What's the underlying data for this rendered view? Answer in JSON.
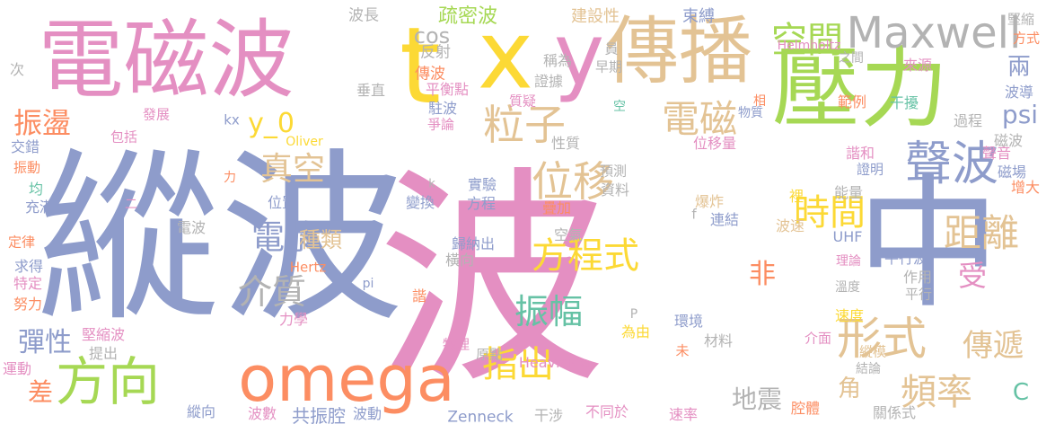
{
  "word_cloud": {
    "colors": {
      "pink": "#e48fc2",
      "periwinkle": "#8e9ccb",
      "yellow": "#fcd935",
      "tan": "#e3c394",
      "green": "#a6d854",
      "orange": "#fc8d62",
      "teal": "#66c2a5",
      "gray": "#b3b3b3"
    },
    "words": [
      {
        "text": "縱波",
        "color": "periwinkle"
      },
      {
        "text": "波",
        "color": "pink"
      },
      {
        "text": "中",
        "color": "periwinkle"
      },
      {
        "text": "電磁波",
        "color": "pink"
      },
      {
        "text": "t",
        "color": "yellow"
      },
      {
        "text": "x",
        "color": "yellow"
      },
      {
        "text": "y",
        "color": "pink"
      },
      {
        "text": "傳播",
        "color": "tan"
      },
      {
        "text": "壓力",
        "color": "green"
      },
      {
        "text": "omega",
        "color": "orange"
      },
      {
        "text": "方向",
        "color": "green"
      },
      {
        "text": "Maxwell",
        "color": "gray"
      },
      {
        "text": "聲波",
        "color": "periwinkle"
      },
      {
        "text": "粒子",
        "color": "tan"
      },
      {
        "text": "電磁",
        "color": "tan"
      },
      {
        "text": "空間",
        "color": "green"
      },
      {
        "text": "位移",
        "color": "tan"
      },
      {
        "text": "方程式",
        "color": "yellow"
      },
      {
        "text": "形式",
        "color": "tan"
      },
      {
        "text": "距離",
        "color": "tan"
      },
      {
        "text": "時間",
        "color": "yellow"
      },
      {
        "text": "振幅",
        "color": "teal"
      },
      {
        "text": "指出",
        "color": "yellow"
      },
      {
        "text": "頻率",
        "color": "tan"
      },
      {
        "text": "傳遞",
        "color": "tan"
      },
      {
        "text": "電漿",
        "color": "periwinkle"
      },
      {
        "text": "介質",
        "color": "gray"
      },
      {
        "text": "真空",
        "color": "tan"
      },
      {
        "text": "振盪",
        "color": "orange"
      },
      {
        "text": "psi",
        "color": "periwinkle"
      },
      {
        "text": "兩",
        "color": "periwinkle"
      },
      {
        "text": "彈性",
        "color": "periwinkle"
      },
      {
        "text": "差",
        "color": "orange"
      },
      {
        "text": "非",
        "color": "orange"
      },
      {
        "text": "受",
        "color": "pink"
      },
      {
        "text": "地震",
        "color": "gray"
      },
      {
        "text": "角",
        "color": "tan"
      },
      {
        "text": "C",
        "color": "teal"
      },
      {
        "text": "y_0",
        "color": "yellow"
      },
      {
        "text": "cos",
        "color": "gray"
      },
      {
        "text": "疏密波",
        "color": "green"
      },
      {
        "text": "種類",
        "color": "tan"
      },
      {
        "text": "共振腔",
        "color": "periwinkle"
      },
      {
        "text": "建設性",
        "color": "tan"
      },
      {
        "text": "束縛",
        "color": "periwinkle"
      },
      {
        "text": "波長",
        "color": "gray"
      },
      {
        "text": "反射",
        "color": "gray"
      },
      {
        "text": "傳波",
        "color": "orange"
      },
      {
        "text": "稱為",
        "color": "gray"
      },
      {
        "text": "證據",
        "color": "gray"
      },
      {
        "text": "員",
        "color": "gray"
      },
      {
        "text": "早期",
        "color": "gray"
      },
      {
        "text": "Helmholtz",
        "color": "pink"
      },
      {
        "text": "之間",
        "color": "gray"
      },
      {
        "text": "來源",
        "color": "pink"
      },
      {
        "text": "堅縮",
        "color": "gray"
      },
      {
        "text": "方式",
        "color": "orange"
      },
      {
        "text": "次",
        "color": "gray"
      },
      {
        "text": "垂直",
        "color": "gray"
      },
      {
        "text": "平衡點",
        "color": "pink"
      },
      {
        "text": "質疑",
        "color": "pink"
      },
      {
        "text": "駐波",
        "color": "periwinkle"
      },
      {
        "text": "爭論",
        "color": "pink"
      },
      {
        "text": "空",
        "color": "teal"
      },
      {
        "text": "相",
        "color": "orange"
      },
      {
        "text": "物質",
        "color": "periwinkle"
      },
      {
        "text": "範例",
        "color": "orange"
      },
      {
        "text": "干擾",
        "color": "teal"
      },
      {
        "text": "過程",
        "color": "gray"
      },
      {
        "text": "波導",
        "color": "periwinkle"
      },
      {
        "text": "發展",
        "color": "pink"
      },
      {
        "text": "kx",
        "color": "periwinkle"
      },
      {
        "text": "包括",
        "color": "pink"
      },
      {
        "text": "Oliver",
        "color": "yellow"
      },
      {
        "text": "性質",
        "color": "gray"
      },
      {
        "text": "位移量",
        "color": "pink"
      },
      {
        "text": "交錯",
        "color": "periwinkle"
      },
      {
        "text": "振動",
        "color": "orange"
      },
      {
        "text": "預測",
        "color": "gray"
      },
      {
        "text": "資料",
        "color": "gray"
      },
      {
        "text": "諧和",
        "color": "pink"
      },
      {
        "text": "證明",
        "color": "periwinkle"
      },
      {
        "text": "聲音",
        "color": "pink"
      },
      {
        "text": "磁波",
        "color": "gray"
      },
      {
        "text": "磁場",
        "color": "periwinkle"
      },
      {
        "text": "增大",
        "color": "orange"
      },
      {
        "text": "力",
        "color": "orange"
      },
      {
        "text": "均",
        "color": "teal"
      },
      {
        "text": "充滿",
        "color": "periwinkle"
      },
      {
        "text": "二",
        "color": "pink"
      },
      {
        "text": "k",
        "color": "gray"
      },
      {
        "text": "實驗",
        "color": "periwinkle"
      },
      {
        "text": "爆炸",
        "color": "tan"
      },
      {
        "text": "f",
        "color": "gray"
      },
      {
        "text": "連結",
        "color": "periwinkle"
      },
      {
        "text": "裡",
        "color": "yellow"
      },
      {
        "text": "能量",
        "color": "gray"
      },
      {
        "text": "位置",
        "color": "periwinkle"
      },
      {
        "text": "變換",
        "color": "periwinkle"
      },
      {
        "text": "方程",
        "color": "periwinkle"
      },
      {
        "text": "疊加",
        "color": "orange"
      },
      {
        "text": "定律",
        "color": "orange"
      },
      {
        "text": "電波",
        "color": "gray"
      },
      {
        "text": "波速",
        "color": "tan"
      },
      {
        "text": "UHF",
        "color": "periwinkle"
      },
      {
        "text": "求得",
        "color": "periwinkle"
      },
      {
        "text": "Hertz",
        "color": "orange"
      },
      {
        "text": "歸納出",
        "color": "periwinkle"
      },
      {
        "text": "空氣",
        "color": "gray"
      },
      {
        "text": "理論",
        "color": "pink"
      },
      {
        "text": "特定",
        "color": "pink"
      },
      {
        "text": "橫向",
        "color": "gray"
      },
      {
        "text": "平行波",
        "color": "periwinkle"
      },
      {
        "text": "作用",
        "color": "gray"
      },
      {
        "text": "平行",
        "color": "gray"
      },
      {
        "text": "溫度",
        "color": "gray"
      },
      {
        "text": "pi",
        "color": "periwinkle"
      },
      {
        "text": "諧",
        "color": "orange"
      },
      {
        "text": "努力",
        "color": "orange"
      },
      {
        "text": "力學",
        "color": "pink"
      },
      {
        "text": "P",
        "color": "gray"
      },
      {
        "text": "環境",
        "color": "periwinkle"
      },
      {
        "text": "速度",
        "color": "yellow"
      },
      {
        "text": "堅縮波",
        "color": "pink"
      },
      {
        "text": "提出",
        "color": "gray"
      },
      {
        "text": "物理",
        "color": "pink"
      },
      {
        "text": "原點",
        "color": "gray"
      },
      {
        "text": "為由",
        "color": "yellow"
      },
      {
        "text": "未",
        "color": "orange"
      },
      {
        "text": "材料",
        "color": "gray"
      },
      {
        "text": "介面",
        "color": "pink"
      },
      {
        "text": "縱模",
        "color": "tan"
      },
      {
        "text": "運動",
        "color": "pink"
      },
      {
        "text": "Heaviside",
        "color": "pink"
      },
      {
        "text": "結論",
        "color": "gray"
      },
      {
        "text": "縱向",
        "color": "periwinkle"
      },
      {
        "text": "波數",
        "color": "pink"
      },
      {
        "text": "波動",
        "color": "periwinkle"
      },
      {
        "text": "Zenneck",
        "color": "periwinkle"
      },
      {
        "text": "干涉",
        "color": "gray"
      },
      {
        "text": "不同於",
        "color": "pink"
      },
      {
        "text": "速率",
        "color": "pink"
      },
      {
        "text": "腔體",
        "color": "orange"
      },
      {
        "text": "關係式",
        "color": "gray"
      }
    ]
  }
}
